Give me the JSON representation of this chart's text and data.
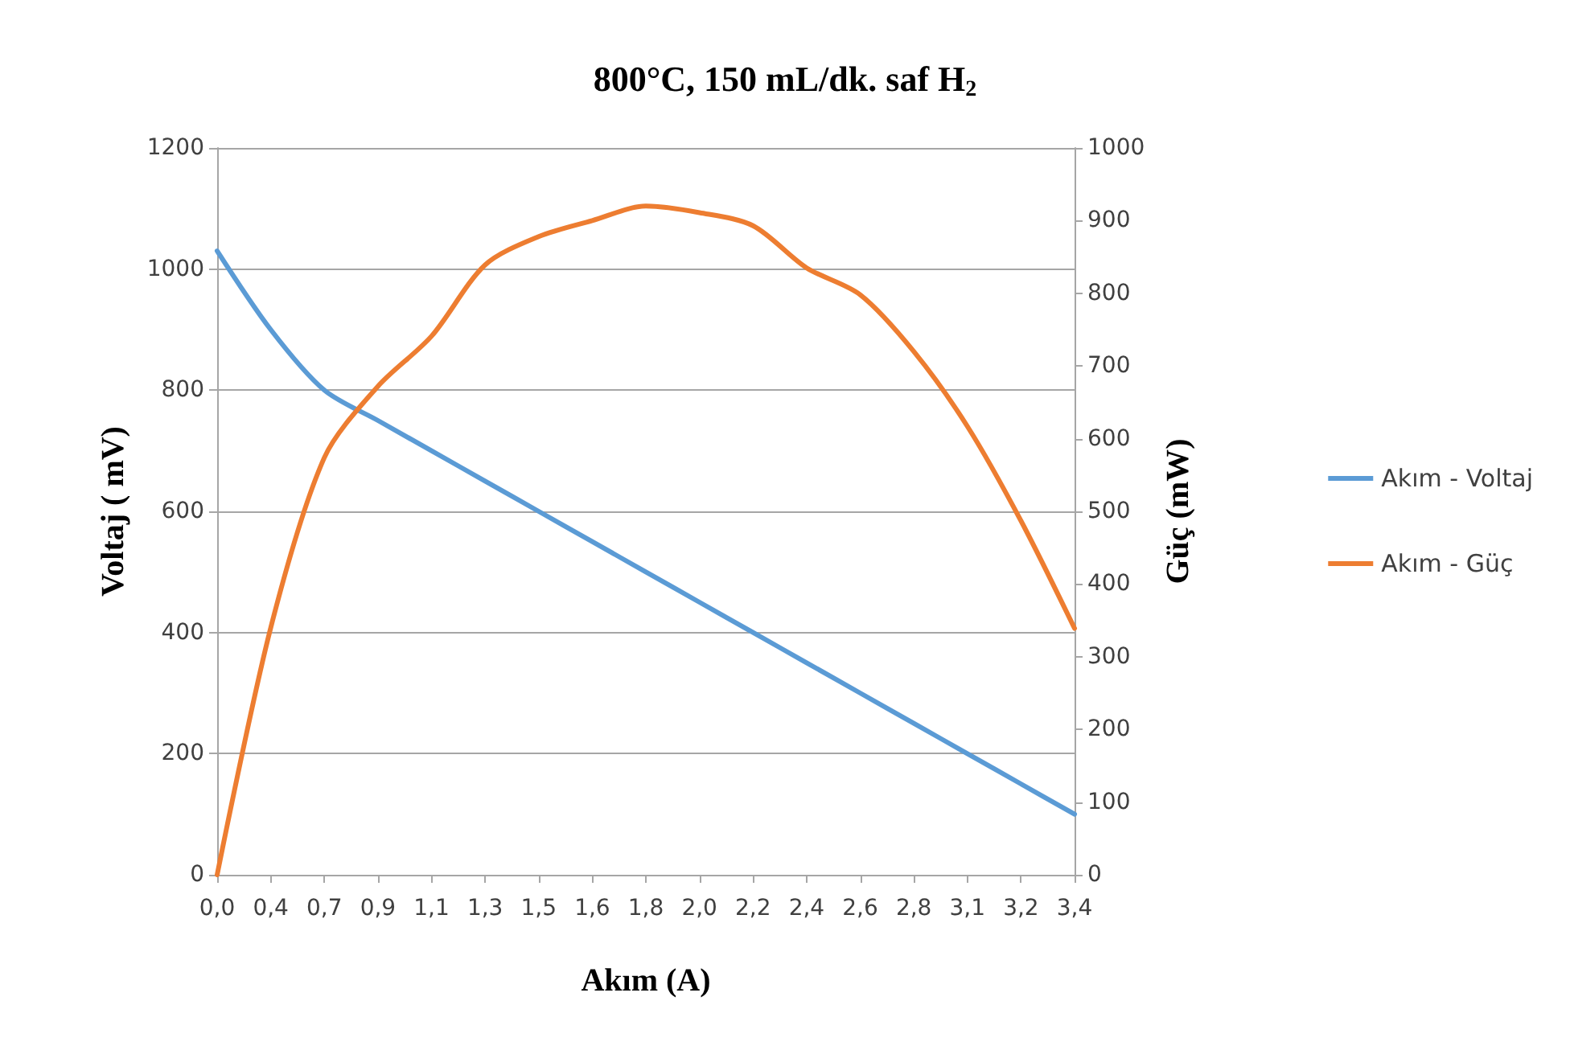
{
  "chart_data": {
    "type": "line",
    "title": "800°C, 150 mL/dk. saf H$_{2}$",
    "xlabel": "Akım (A)",
    "ylabel": "Voltaj ( mV)",
    "y2label": "Güç (mW)",
    "categories": [
      "0,0",
      "0,4",
      "0,7",
      "0,9",
      "1,1",
      "1,3",
      "1,5",
      "1,6",
      "1,8",
      "2,0",
      "2,2",
      "2,4",
      "2,6",
      "2,8",
      "3,1",
      "3,2",
      "3,4"
    ],
    "series": [
      {
        "name": "Akım - Voltaj",
        "color": "#5b9bd5",
        "values": [
          1030,
          900,
          800,
          750,
          700,
          650,
          600,
          550,
          500,
          450,
          400,
          350,
          300,
          250,
          200,
          150,
          100
        ]
      },
      {
        "name": "Akım - Güç",
        "color": "#ed7d31",
        "axis": "y2",
        "values": [
          0,
          340,
          574,
          672,
          741,
          839,
          878,
          900,
          920,
          911,
          893,
          835,
          798,
          720,
          617,
          487,
          339
        ]
      }
    ],
    "ylim": [
      0,
      1200
    ],
    "yticks": [
      0,
      200,
      400,
      600,
      800,
      1000,
      1200
    ],
    "y2lim": [
      0,
      1000
    ],
    "y2ticks": [
      0,
      100,
      200,
      300,
      400,
      500,
      600,
      700,
      800,
      900,
      1000
    ],
    "grid": "y",
    "legend": "right",
    "marker": "none",
    "line_style": "solid"
  }
}
